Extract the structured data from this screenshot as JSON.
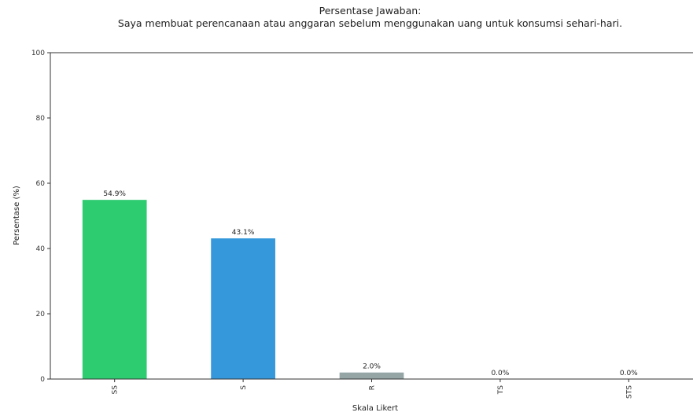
{
  "chart_data": {
    "type": "bar",
    "title": "Persentase Jawaban:",
    "subtitle": "Saya membuat perencanaan atau anggaran sebelum menggunakan uang untuk konsumsi sehari-hari.",
    "xlabel": "Skala Likert",
    "ylabel": "Persentase (%)",
    "categories": [
      "SS",
      "S",
      "R",
      "TS",
      "STS"
    ],
    "values": [
      54.9,
      43.1,
      2.0,
      0.0,
      0.0
    ],
    "value_labels": [
      "54.9%",
      "43.1%",
      "2.0%",
      "0.0%",
      "0.0%"
    ],
    "colors": [
      "#2ecc71",
      "#3498db",
      "#95a5a6",
      "#e67e22",
      "#e74c3c"
    ],
    "ylim": [
      0,
      100
    ],
    "yticks": [
      "0",
      "20",
      "40",
      "60",
      "80",
      "100"
    ],
    "grid": false,
    "legend": "none"
  }
}
